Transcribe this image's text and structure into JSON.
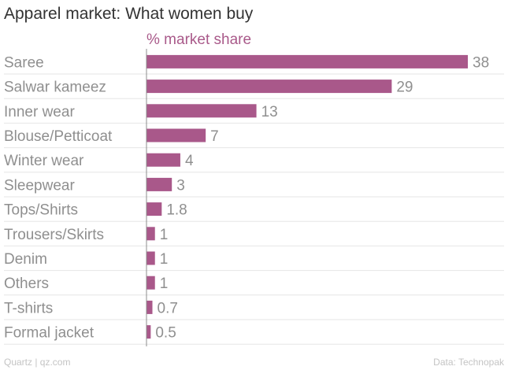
{
  "title": "Apparel market: What women buy",
  "footer": {
    "source_left": "Quartz | qz.com",
    "source_right": "Data: Technopak"
  },
  "colors": {
    "bar": "#a9588a",
    "axis_title": "#a95a8a",
    "label": "#8f8f8f",
    "grid": "#e6e6e6"
  },
  "chart_data": {
    "type": "bar",
    "orientation": "horizontal",
    "title": "Apparel market: What women buy",
    "xlabel": "% market share",
    "ylabel": "",
    "xlim": [
      0,
      38
    ],
    "categories": [
      "Saree",
      "Salwar kameez",
      "Inner wear",
      "Blouse/Petticoat",
      "Winter wear",
      "Sleepwear",
      "Tops/Shirts",
      "Trousers/Skirts",
      "Denim",
      "Others",
      "T-shirts",
      "Formal jacket"
    ],
    "values": [
      38,
      29,
      13,
      7,
      4,
      3,
      1.8,
      1,
      1,
      1,
      0.7,
      0.5
    ],
    "value_labels": [
      "38",
      "29",
      "13",
      "7",
      "4",
      "3",
      "1.8",
      "1",
      "1",
      "1",
      "0.7",
      "0.5"
    ]
  }
}
